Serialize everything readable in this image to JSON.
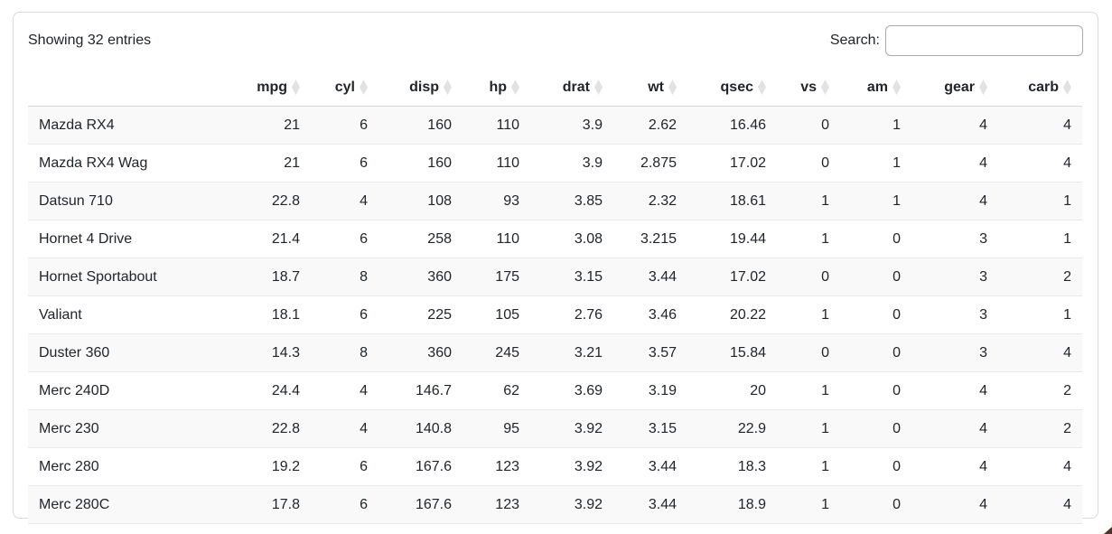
{
  "page": {
    "info_text": "Showing 32 entries",
    "search_label": "Search:",
    "search_value": "",
    "search_placeholder": ""
  },
  "table": {
    "row_header_label": "",
    "columns": [
      "mpg",
      "cyl",
      "disp",
      "hp",
      "drat",
      "wt",
      "qsec",
      "vs",
      "am",
      "gear",
      "carb"
    ],
    "sort_icon": "sort-both-icon",
    "rows": [
      {
        "name": "Mazda RX4",
        "values": [
          21,
          6,
          160,
          110,
          3.9,
          2.62,
          16.46,
          0,
          1,
          4,
          4
        ]
      },
      {
        "name": "Mazda RX4 Wag",
        "values": [
          21,
          6,
          160,
          110,
          3.9,
          2.875,
          17.02,
          0,
          1,
          4,
          4
        ]
      },
      {
        "name": "Datsun 710",
        "values": [
          22.8,
          4,
          108,
          93,
          3.85,
          2.32,
          18.61,
          1,
          1,
          4,
          1
        ]
      },
      {
        "name": "Hornet 4 Drive",
        "values": [
          21.4,
          6,
          258,
          110,
          3.08,
          3.215,
          19.44,
          1,
          0,
          3,
          1
        ]
      },
      {
        "name": "Hornet Sportabout",
        "values": [
          18.7,
          8,
          360,
          175,
          3.15,
          3.44,
          17.02,
          0,
          0,
          3,
          2
        ]
      },
      {
        "name": "Valiant",
        "values": [
          18.1,
          6,
          225,
          105,
          2.76,
          3.46,
          20.22,
          1,
          0,
          3,
          1
        ]
      },
      {
        "name": "Duster 360",
        "values": [
          14.3,
          8,
          360,
          245,
          3.21,
          3.57,
          15.84,
          0,
          0,
          3,
          4
        ]
      },
      {
        "name": "Merc 240D",
        "values": [
          24.4,
          4,
          146.7,
          62,
          3.69,
          3.19,
          20,
          1,
          0,
          4,
          2
        ]
      },
      {
        "name": "Merc 230",
        "values": [
          22.8,
          4,
          140.8,
          95,
          3.92,
          3.15,
          22.9,
          1,
          0,
          4,
          2
        ]
      },
      {
        "name": "Merc 280",
        "values": [
          19.2,
          6,
          167.6,
          123,
          3.92,
          3.44,
          18.3,
          1,
          0,
          4,
          4
        ]
      },
      {
        "name": "Merc 280C",
        "values": [
          17.8,
          6,
          167.6,
          123,
          3.92,
          3.44,
          18.9,
          1,
          0,
          4,
          4
        ]
      }
    ]
  },
  "colors": {
    "text": "#212529",
    "stripe": "#f9f9f9",
    "row_line": "#e9e9e9",
    "header_line": "#d6d6d6",
    "card_border": "#d9d9d9",
    "input_border": "#a9a9a9",
    "sort_icon": "#e2e2e2"
  }
}
